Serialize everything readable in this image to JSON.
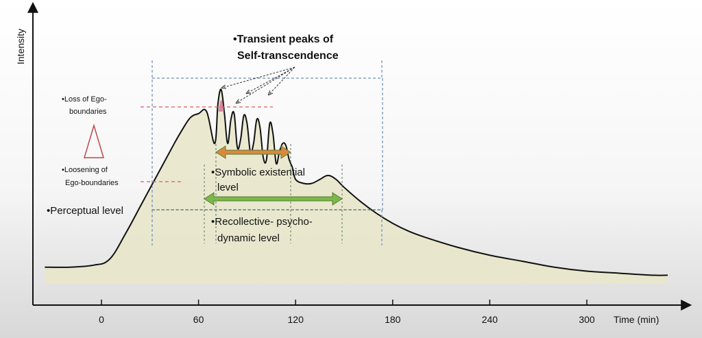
{
  "chart_data": {
    "type": "area",
    "title": "",
    "xlabel": "Time (min)",
    "ylabel": "Intensity",
    "x_ticks": [
      0,
      60,
      120,
      180,
      240,
      300
    ],
    "xlim": [
      -40,
      355
    ],
    "ylim": [
      0,
      1
    ],
    "series": [
      {
        "x": [
          -35,
          -20,
          -5,
          5,
          15,
          25,
          35,
          45,
          50,
          55,
          60,
          65,
          70,
          72,
          74,
          76,
          78,
          80,
          82,
          84,
          86,
          88,
          90,
          92,
          94,
          96,
          98,
          100,
          102,
          104,
          106,
          108,
          110,
          112,
          114,
          116,
          118,
          120,
          125,
          130,
          135,
          140,
          145,
          150,
          160,
          170,
          180,
          190,
          200,
          220,
          240,
          260,
          280,
          300,
          320,
          340,
          350
        ],
        "y": [
          0.08,
          0.08,
          0.09,
          0.12,
          0.25,
          0.4,
          0.55,
          0.7,
          0.77,
          0.83,
          0.85,
          0.86,
          0.7,
          0.9,
          0.97,
          0.85,
          0.7,
          0.82,
          0.85,
          0.68,
          0.72,
          0.84,
          0.8,
          0.66,
          0.7,
          0.82,
          0.78,
          0.63,
          0.62,
          0.8,
          0.75,
          0.6,
          0.66,
          0.7,
          0.69,
          0.62,
          0.58,
          0.52,
          0.5,
          0.5,
          0.52,
          0.54,
          0.52,
          0.48,
          0.41,
          0.35,
          0.3,
          0.26,
          0.23,
          0.18,
          0.14,
          0.11,
          0.08,
          0.06,
          0.05,
          0.04,
          0.04
        ]
      }
    ],
    "annotations": {
      "peaks_title_1": "•Transient peaks of",
      "peaks_title_2": "Self-transcendence",
      "loss_1": "•Loss of Ego-",
      "loss_2": "boundaries",
      "loosening_1": "•Loosening of",
      "loosening_2": "Ego-boundaries",
      "perceptual": "•Perceptual level",
      "symbolic_1": "•Symbolic existential",
      "symbolic_2": "level",
      "recollective_1": "•Recollective- psycho-",
      "recollective_2": "dynamic level"
    },
    "colors": {
      "fill": "#e8e7cb",
      "curve": "#111111",
      "orange_arrow": "#d88a3a",
      "green_arrow": "#7bb847",
      "peak_fill": "#d88aa4",
      "red_dash": "#e05a5a",
      "blue_dash": "#6c8fb8",
      "green_dash": "#5a7a5a"
    }
  }
}
